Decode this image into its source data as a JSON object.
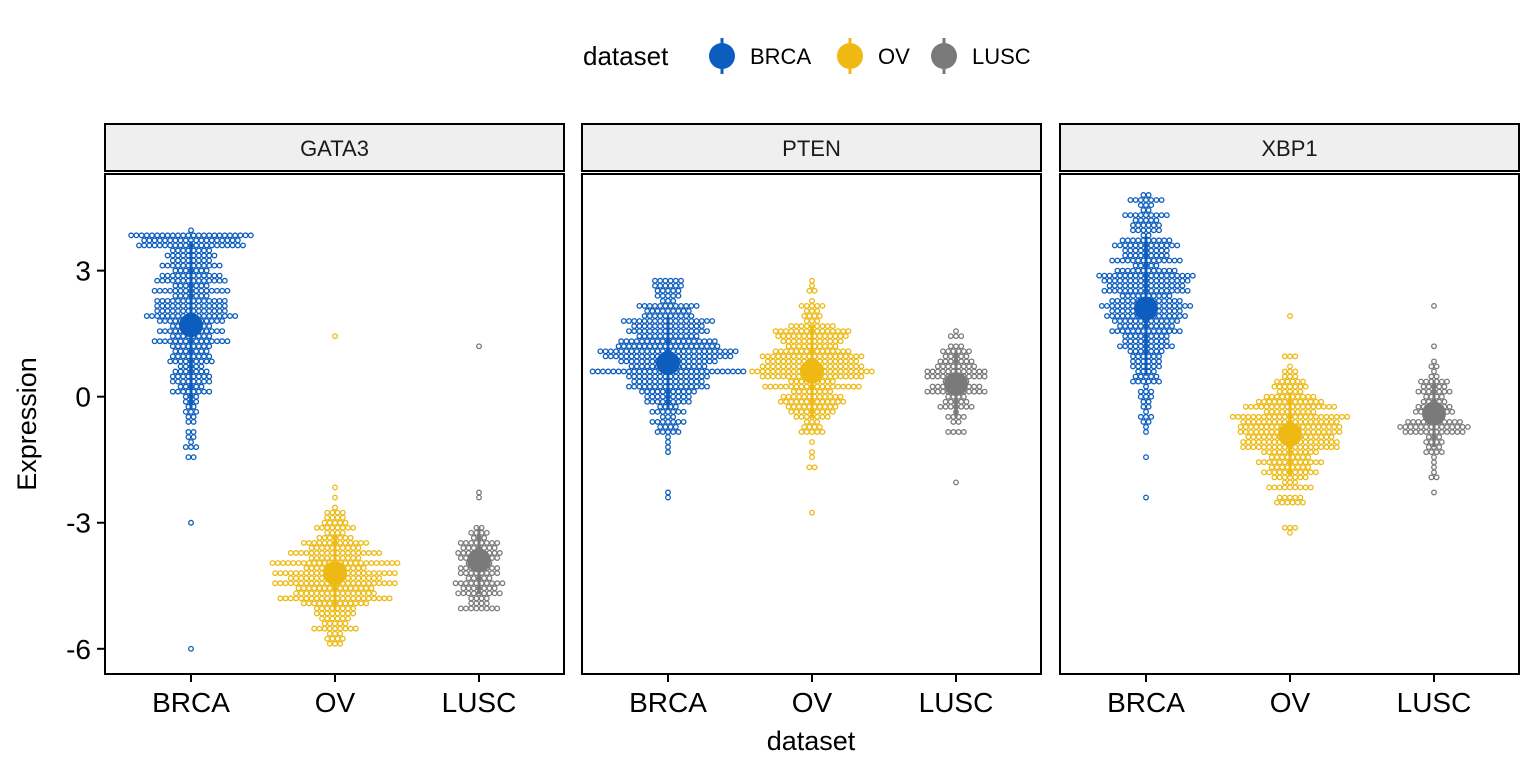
{
  "chart_data": {
    "type": "scatter",
    "subtype": "dotplot-faceted",
    "title": "",
    "xlabel": "dataset",
    "ylabel": "Expression",
    "ylim": [
      -6.6,
      5.3
    ],
    "yticks": [
      3,
      0,
      -3,
      -6
    ],
    "ytick_labels": [
      "3",
      "0",
      "-3",
      "-6"
    ],
    "categories": [
      "BRCA",
      "OV",
      "LUSC"
    ],
    "legend": {
      "title": "dataset",
      "position": "top",
      "entries": [
        "BRCA",
        "OV",
        "LUSC"
      ]
    },
    "colors": {
      "BRCA": "#0C5DBE",
      "OV": "#EDB912",
      "LUSC": "#7A7A7A"
    },
    "grid": false,
    "facets": [
      {
        "label": "GATA3",
        "series": [
          {
            "name": "BRCA",
            "mean": 1.7,
            "sd_low": -0.3,
            "sd_high": 3.7,
            "min": -6.0,
            "max": 3.9,
            "mode": 2.2,
            "n": 380
          },
          {
            "name": "OV",
            "mean": -4.2,
            "sd_low": -5.1,
            "sd_high": -3.3,
            "min": -5.9,
            "max": 1.4,
            "mode": -4.3,
            "n": 300
          },
          {
            "name": "LUSC",
            "mean": -3.9,
            "sd_low": -4.7,
            "sd_high": -3.1,
            "min": -5.1,
            "max": 1.2,
            "mode": -4.2,
            "n": 110
          }
        ]
      },
      {
        "label": "PTEN",
        "series": [
          {
            "name": "BRCA",
            "mean": 0.8,
            "sd_low": -0.3,
            "sd_high": 1.9,
            "min": -2.4,
            "max": 2.8,
            "mode": 0.9,
            "n": 380
          },
          {
            "name": "OV",
            "mean": 0.6,
            "sd_low": -0.5,
            "sd_high": 1.7,
            "min": -2.8,
            "max": 2.7,
            "mode": 0.7,
            "n": 300
          },
          {
            "name": "LUSC",
            "mean": 0.3,
            "sd_low": -0.5,
            "sd_high": 1.1,
            "min": -2.0,
            "max": 1.5,
            "mode": 0.3,
            "n": 110
          }
        ]
      },
      {
        "label": "XBP1",
        "series": [
          {
            "name": "BRCA",
            "mean": 2.1,
            "sd_low": 0.5,
            "sd_high": 3.8,
            "min": -2.4,
            "max": 4.8,
            "mode": 2.3,
            "n": 380
          },
          {
            "name": "OV",
            "mean": -0.9,
            "sd_low": -1.9,
            "sd_high": 0.1,
            "min": -3.2,
            "max": 1.9,
            "mode": -0.9,
            "n": 300
          },
          {
            "name": "LUSC",
            "mean": -0.4,
            "sd_low": -1.2,
            "sd_high": 0.4,
            "min": -2.3,
            "max": 2.2,
            "mode": -0.5,
            "n": 110
          }
        ]
      }
    ]
  }
}
